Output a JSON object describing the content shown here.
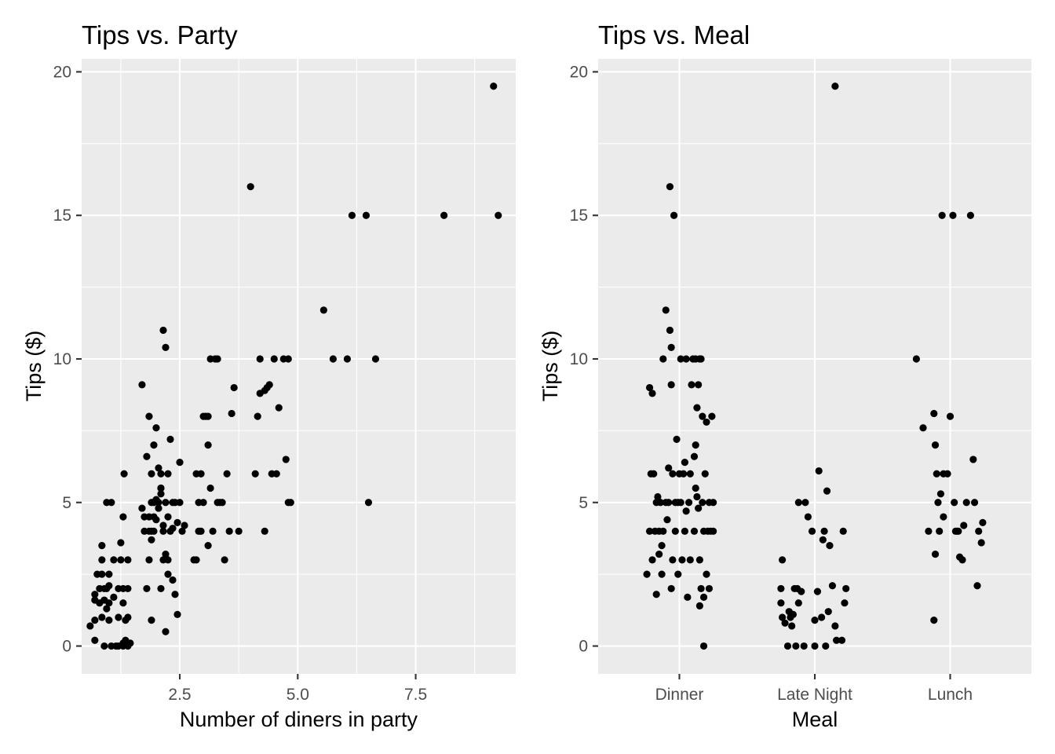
{
  "chart_data": [
    {
      "type": "scatter",
      "title": "Tips vs. Party",
      "xlabel": "Number of diners in party",
      "ylabel": "Tips ($)",
      "xlim": [
        0.42,
        9.62
      ],
      "ylim": [
        -0.97,
        20.45
      ],
      "x_ticks": [
        2.5,
        5.0,
        7.5
      ],
      "x_tick_labels": [
        "2.5",
        "5.0",
        "7.5"
      ],
      "y_ticks": [
        0,
        5,
        10,
        15,
        20
      ],
      "y_tick_labels": [
        "0",
        "5",
        "10",
        "15",
        "20"
      ],
      "grid": true,
      "point_color": "#000000",
      "points": [
        [
          0.6,
          0.7
        ],
        [
          0.7,
          0.2
        ],
        [
          0.7,
          0.9
        ],
        [
          0.7,
          1.6
        ],
        [
          0.7,
          1.8
        ],
        [
          0.75,
          2.5
        ],
        [
          0.8,
          1.5
        ],
        [
          0.8,
          2.0
        ],
        [
          0.85,
          1.0
        ],
        [
          0.85,
          2.5
        ],
        [
          0.85,
          3.0
        ],
        [
          0.85,
          3.5
        ],
        [
          0.9,
          0.0
        ],
        [
          0.9,
          1.6
        ],
        [
          0.9,
          2.0
        ],
        [
          0.95,
          1.3
        ],
        [
          0.95,
          2.0
        ],
        [
          0.95,
          5.0
        ],
        [
          1.0,
          0.9
        ],
        [
          1.0,
          1.5
        ],
        [
          1.0,
          2.1
        ],
        [
          1.0,
          2.5
        ],
        [
          1.05,
          0.0
        ],
        [
          1.05,
          5.0
        ],
        [
          1.1,
          1.7
        ],
        [
          1.1,
          3.0
        ],
        [
          1.15,
          0.0
        ],
        [
          1.2,
          0.0
        ],
        [
          1.2,
          1.0
        ],
        [
          1.2,
          2.0
        ],
        [
          1.25,
          3.0
        ],
        [
          1.25,
          3.6
        ],
        [
          1.3,
          0.0
        ],
        [
          1.3,
          0.1
        ],
        [
          1.3,
          1.5
        ],
        [
          1.3,
          2.0
        ],
        [
          1.3,
          4.5
        ],
        [
          1.32,
          6.0
        ],
        [
          1.35,
          0.9
        ],
        [
          1.35,
          0.2
        ],
        [
          1.4,
          0.0
        ],
        [
          1.4,
          1.0
        ],
        [
          1.4,
          2.0
        ],
        [
          1.4,
          3.0
        ],
        [
          1.45,
          0.1
        ],
        [
          1.9,
          0.9
        ],
        [
          1.85,
          3.0
        ],
        [
          1.8,
          2.0
        ],
        [
          1.85,
          4.0
        ],
        [
          1.85,
          4.5
        ],
        [
          1.9,
          5.0
        ],
        [
          1.9,
          3.7
        ],
        [
          1.95,
          4.0
        ],
        [
          1.95,
          4.5
        ],
        [
          2.0,
          4.4
        ],
        [
          2.05,
          5.0
        ],
        [
          2.1,
          5.5
        ],
        [
          2.15,
          4.0
        ],
        [
          2.2,
          5.0
        ],
        [
          2.25,
          4.5
        ],
        [
          2.1,
          5.5
        ],
        [
          2.15,
          3.0
        ],
        [
          2.2,
          3.2
        ],
        [
          2.25,
          2.5
        ],
        [
          2.3,
          4.0
        ],
        [
          2.35,
          4.1
        ],
        [
          2.4,
          5.0
        ],
        [
          2.45,
          4.3
        ],
        [
          2.5,
          5.0
        ],
        [
          2.55,
          4.0
        ],
        [
          2.6,
          4.2
        ],
        [
          1.7,
          4.8
        ],
        [
          1.75,
          4.5
        ],
        [
          1.8,
          6.6
        ],
        [
          1.85,
          8.0
        ],
        [
          1.9,
          4.0
        ],
        [
          1.95,
          7.0
        ],
        [
          2.0,
          7.6
        ],
        [
          2.05,
          6.2
        ],
        [
          2.1,
          6.0
        ],
        [
          2.15,
          11.0
        ],
        [
          2.2,
          10.4
        ],
        [
          2.25,
          6.0
        ],
        [
          2.3,
          7.2
        ],
        [
          2.35,
          5.0
        ],
        [
          2.4,
          1.8
        ],
        [
          2.45,
          1.1
        ],
        [
          2.2,
          0.5
        ],
        [
          2.1,
          2.0
        ],
        [
          2.5,
          6.4
        ],
        [
          1.7,
          9.1
        ],
        [
          1.75,
          4.0
        ],
        [
          1.95,
          5.0
        ],
        [
          2.05,
          4.8
        ],
        [
          2.15,
          4.2
        ],
        [
          2.25,
          3.0
        ],
        [
          2.35,
          2.3
        ],
        [
          2.0,
          5.1
        ],
        [
          2.1,
          5.3
        ],
        [
          1.9,
          6.0
        ],
        [
          2.8,
          3.0
        ],
        [
          2.85,
          3.0
        ],
        [
          2.9,
          4.0
        ],
        [
          2.85,
          6.0
        ],
        [
          2.95,
          6.0
        ],
        [
          2.9,
          5.0
        ],
        [
          2.95,
          4.0
        ],
        [
          3.0,
          8.0
        ],
        [
          3.05,
          8.0
        ],
        [
          3.1,
          8.0
        ],
        [
          3.1,
          3.5
        ],
        [
          3.1,
          7.0
        ],
        [
          3.15,
          10.0
        ],
        [
          3.2,
          4.0
        ],
        [
          3.25,
          10.0
        ],
        [
          3.3,
          10.0
        ],
        [
          3.3,
          5.0
        ],
        [
          3.35,
          5.0
        ],
        [
          3.4,
          5.0
        ],
        [
          3.45,
          3.0
        ],
        [
          3.5,
          6.0
        ],
        [
          3.55,
          4.0
        ],
        [
          3.6,
          8.1
        ],
        [
          3.65,
          9.0
        ],
        [
          3.75,
          4.0
        ],
        [
          3.0,
          5.0
        ],
        [
          3.15,
          5.5
        ],
        [
          4.0,
          16.0
        ],
        [
          4.1,
          6.0
        ],
        [
          4.15,
          8.0
        ],
        [
          4.2,
          10.0
        ],
        [
          4.3,
          8.9
        ],
        [
          4.35,
          9.0
        ],
        [
          4.4,
          9.1
        ],
        [
          4.3,
          4.0
        ],
        [
          4.45,
          6.0
        ],
        [
          4.5,
          10.0
        ],
        [
          4.55,
          6.0
        ],
        [
          4.6,
          8.3
        ],
        [
          4.7,
          10.0
        ],
        [
          4.75,
          6.5
        ],
        [
          4.8,
          10.0
        ],
        [
          4.8,
          5.0
        ],
        [
          4.85,
          5.0
        ],
        [
          4.2,
          8.8
        ],
        [
          5.55,
          11.7
        ],
        [
          5.75,
          10.0
        ],
        [
          6.05,
          10.0
        ],
        [
          6.15,
          15.0
        ],
        [
          6.45,
          15.0
        ],
        [
          6.5,
          5.0
        ],
        [
          6.65,
          10.0
        ],
        [
          8.1,
          15.0
        ],
        [
          9.15,
          19.5
        ],
        [
          9.25,
          15.0
        ]
      ]
    },
    {
      "type": "scatter",
      "title": "Tips vs. Meal",
      "xlabel": "Meal",
      "ylabel": "Tips ($)",
      "categories": [
        "Dinner",
        "Late Night",
        "Lunch"
      ],
      "ylim": [
        -0.97,
        20.45
      ],
      "y_ticks": [
        0,
        5,
        10,
        15,
        20
      ],
      "y_tick_labels": [
        "0",
        "5",
        "10",
        "15",
        "20"
      ],
      "grid": true,
      "point_color": "#000000",
      "points": [
        [
          "Dinner",
          -0.24,
          2.5
        ],
        [
          "Dinner",
          -0.22,
          4.0
        ],
        [
          "Dinner",
          -0.22,
          9.0
        ],
        [
          "Dinner",
          -0.21,
          6.0
        ],
        [
          "Dinner",
          -0.2,
          8.8
        ],
        [
          "Dinner",
          -0.2,
          3.0
        ],
        [
          "Dinner",
          -0.19,
          6.0
        ],
        [
          "Dinner",
          -0.18,
          4.0
        ],
        [
          "Dinner",
          -0.17,
          1.8
        ],
        [
          "Dinner",
          -0.17,
          5.0
        ],
        [
          "Dinner",
          -0.16,
          5.2
        ],
        [
          "Dinner",
          -0.15,
          3.2
        ],
        [
          "Dinner",
          -0.15,
          4.0
        ],
        [
          "Dinner",
          -0.14,
          5.0
        ],
        [
          "Dinner",
          -0.13,
          3.5
        ],
        [
          "Dinner",
          -0.13,
          2.5
        ],
        [
          "Dinner",
          -0.12,
          4.0
        ],
        [
          "Dinner",
          -0.12,
          10.0
        ],
        [
          "Dinner",
          -0.1,
          5.0
        ],
        [
          "Dinner",
          -0.1,
          11.7
        ],
        [
          "Dinner",
          -0.09,
          4.4
        ],
        [
          "Dinner",
          -0.08,
          6.2
        ],
        [
          "Dinner",
          -0.08,
          5.0
        ],
        [
          "Dinner",
          -0.07,
          16.0
        ],
        [
          "Dinner",
          -0.07,
          11.0
        ],
        [
          "Dinner",
          -0.06,
          9.1
        ],
        [
          "Dinner",
          -0.06,
          10.4
        ],
        [
          "Dinner",
          -0.06,
          2.0
        ],
        [
          "Dinner",
          -0.05,
          6.0
        ],
        [
          "Dinner",
          -0.05,
          3.0
        ],
        [
          "Dinner",
          -0.04,
          15.0
        ],
        [
          "Dinner",
          -0.03,
          5.0
        ],
        [
          "Dinner",
          -0.03,
          4.0
        ],
        [
          "Dinner",
          -0.02,
          7.2
        ],
        [
          "Dinner",
          -0.01,
          5.0
        ],
        [
          "Dinner",
          -0.01,
          2.5
        ],
        [
          "Dinner",
          0.0,
          6.0
        ],
        [
          "Dinner",
          0.01,
          10.0
        ],
        [
          "Dinner",
          0.01,
          5.0
        ],
        [
          "Dinner",
          0.02,
          3.0
        ],
        [
          "Dinner",
          0.03,
          6.0
        ],
        [
          "Dinner",
          0.04,
          4.0
        ],
        [
          "Dinner",
          0.04,
          6.4
        ],
        [
          "Dinner",
          0.05,
          10.0
        ],
        [
          "Dinner",
          0.05,
          4.7
        ],
        [
          "Dinner",
          0.06,
          1.7
        ],
        [
          "Dinner",
          0.07,
          5.0
        ],
        [
          "Dinner",
          0.08,
          3.0
        ],
        [
          "Dinner",
          0.08,
          6.0
        ],
        [
          "Dinner",
          0.09,
          9.1
        ],
        [
          "Dinner",
          0.1,
          10.0
        ],
        [
          "Dinner",
          0.11,
          6.6
        ],
        [
          "Dinner",
          0.11,
          4.0
        ],
        [
          "Dinner",
          0.12,
          7.0
        ],
        [
          "Dinner",
          0.12,
          10.0
        ],
        [
          "Dinner",
          0.13,
          5.2
        ],
        [
          "Dinner",
          0.13,
          8.3
        ],
        [
          "Dinner",
          0.14,
          4.8
        ],
        [
          "Dinner",
          0.14,
          9.1
        ],
        [
          "Dinner",
          0.15,
          10.0
        ],
        [
          "Dinner",
          0.15,
          1.4
        ],
        [
          "Dinner",
          0.15,
          3.0
        ],
        [
          "Dinner",
          0.16,
          10.0
        ],
        [
          "Dinner",
          0.16,
          2.0
        ],
        [
          "Dinner",
          0.17,
          8.0
        ],
        [
          "Dinner",
          0.17,
          5.0
        ],
        [
          "Dinner",
          0.18,
          1.7
        ],
        [
          "Dinner",
          0.18,
          4.0
        ],
        [
          "Dinner",
          0.18,
          0.0
        ],
        [
          "Dinner",
          0.19,
          6.0
        ],
        [
          "Dinner",
          0.2,
          2.5
        ],
        [
          "Dinner",
          0.21,
          4.0
        ],
        [
          "Dinner",
          0.22,
          5.0
        ],
        [
          "Dinner",
          0.22,
          2.0
        ],
        [
          "Dinner",
          0.23,
          4.0
        ],
        [
          "Dinner",
          0.24,
          8.0
        ],
        [
          "Dinner",
          0.25,
          5.0
        ],
        [
          "Dinner",
          0.25,
          4.0
        ],
        [
          "Dinner",
          0.2,
          7.8
        ],
        [
          "Dinner",
          0.12,
          5.5
        ],
        [
          "Late Night",
          -0.24,
          3.0
        ],
        [
          "Late Night",
          -0.25,
          2.0
        ],
        [
          "Late Night",
          -0.25,
          1.5
        ],
        [
          "Late Night",
          -0.24,
          1.0
        ],
        [
          "Late Night",
          -0.22,
          0.8
        ],
        [
          "Late Night",
          -0.2,
          0.0
        ],
        [
          "Late Night",
          -0.19,
          1.2
        ],
        [
          "Late Night",
          -0.18,
          1.0
        ],
        [
          "Late Night",
          -0.17,
          0.7
        ],
        [
          "Late Night",
          -0.16,
          1.1
        ],
        [
          "Late Night",
          -0.15,
          2.0
        ],
        [
          "Late Night",
          -0.14,
          0.0
        ],
        [
          "Late Night",
          -0.13,
          2.0
        ],
        [
          "Late Night",
          -0.12,
          1.5
        ],
        [
          "Late Night",
          -0.12,
          5.0
        ],
        [
          "Late Night",
          -0.1,
          1.9
        ],
        [
          "Late Night",
          -0.08,
          0.0
        ],
        [
          "Late Night",
          -0.07,
          5.0
        ],
        [
          "Late Night",
          -0.05,
          4.5
        ],
        [
          "Late Night",
          -0.02,
          4.0
        ],
        [
          "Late Night",
          0.0,
          0.0
        ],
        [
          "Late Night",
          0.0,
          0.9
        ],
        [
          "Late Night",
          0.02,
          1.9
        ],
        [
          "Late Night",
          0.03,
          6.1
        ],
        [
          "Late Night",
          0.05,
          1.0
        ],
        [
          "Late Night",
          0.06,
          3.7
        ],
        [
          "Late Night",
          0.07,
          4.0
        ],
        [
          "Late Night",
          0.08,
          0.0
        ],
        [
          "Late Night",
          0.09,
          5.4
        ],
        [
          "Late Night",
          0.11,
          3.5
        ],
        [
          "Late Night",
          0.13,
          2.1
        ],
        [
          "Late Night",
          0.15,
          19.5
        ],
        [
          "Late Night",
          0.15,
          0.7
        ],
        [
          "Late Night",
          0.16,
          0.2
        ],
        [
          "Late Night",
          0.2,
          0.2
        ],
        [
          "Late Night",
          0.21,
          4.0
        ],
        [
          "Late Night",
          0.22,
          1.5
        ],
        [
          "Late Night",
          0.23,
          2.0
        ],
        [
          "Late Night",
          0.1,
          1.2
        ],
        [
          "Lunch",
          -0.25,
          10.0
        ],
        [
          "Lunch",
          -0.2,
          7.6
        ],
        [
          "Lunch",
          -0.16,
          4.0
        ],
        [
          "Lunch",
          -0.12,
          8.1
        ],
        [
          "Lunch",
          -0.12,
          0.9
        ],
        [
          "Lunch",
          -0.11,
          7.0
        ],
        [
          "Lunch",
          -0.11,
          3.2
        ],
        [
          "Lunch",
          -0.1,
          6.0
        ],
        [
          "Lunch",
          -0.09,
          5.0
        ],
        [
          "Lunch",
          -0.08,
          4.0
        ],
        [
          "Lunch",
          -0.07,
          5.3
        ],
        [
          "Lunch",
          -0.06,
          15.0
        ],
        [
          "Lunch",
          -0.05,
          6.0
        ],
        [
          "Lunch",
          -0.05,
          4.5
        ],
        [
          "Lunch",
          -0.02,
          6.0
        ],
        [
          "Lunch",
          0.0,
          8.0
        ],
        [
          "Lunch",
          0.02,
          15.0
        ],
        [
          "Lunch",
          0.03,
          5.0
        ],
        [
          "Lunch",
          0.04,
          4.0
        ],
        [
          "Lunch",
          0.05,
          4.0
        ],
        [
          "Lunch",
          0.06,
          4.0
        ],
        [
          "Lunch",
          0.07,
          3.1
        ],
        [
          "Lunch",
          0.09,
          3.0
        ],
        [
          "Lunch",
          0.1,
          4.2
        ],
        [
          "Lunch",
          0.12,
          5.0
        ],
        [
          "Lunch",
          0.15,
          15.0
        ],
        [
          "Lunch",
          0.17,
          6.5
        ],
        [
          "Lunch",
          0.18,
          5.0
        ],
        [
          "Lunch",
          0.2,
          2.1
        ],
        [
          "Lunch",
          0.21,
          4.0
        ],
        [
          "Lunch",
          0.23,
          3.6
        ],
        [
          "Lunch",
          0.24,
          4.3
        ]
      ]
    }
  ]
}
